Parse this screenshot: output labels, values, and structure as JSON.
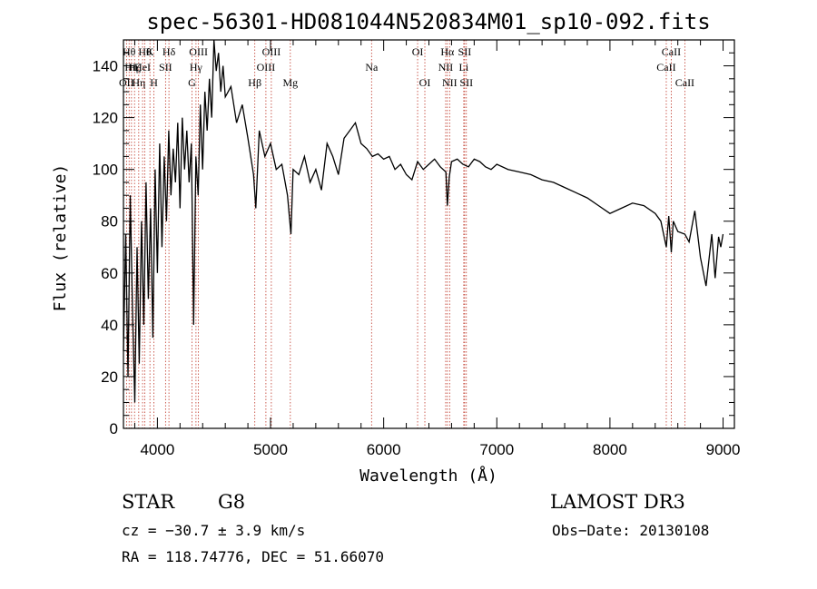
{
  "chart_data": {
    "type": "line",
    "title": "spec-56301-HD081044N520834M01_sp10-092.fits",
    "xlabel": "Wavelength (Å)",
    "ylabel": "Flux (relative)",
    "xlim": [
      3700,
      9100
    ],
    "ylim": [
      0,
      150
    ],
    "xticks": [
      {
        "value": 4000,
        "label": "4000"
      },
      {
        "value": 5000,
        "label": "5000"
      },
      {
        "value": 6000,
        "label": "6000"
      },
      {
        "value": 7000,
        "label": "7000"
      },
      {
        "value": 8000,
        "label": "8000"
      },
      {
        "value": 9000,
        "label": "9000"
      }
    ],
    "yticks": [
      {
        "value": 0,
        "label": "0"
      },
      {
        "value": 20,
        "label": "20"
      },
      {
        "value": 40,
        "label": "40"
      },
      {
        "value": 60,
        "label": "60"
      },
      {
        "value": 80,
        "label": "80"
      },
      {
        "value": 100,
        "label": "100"
      },
      {
        "value": 120,
        "label": "120"
      },
      {
        "value": 140,
        "label": "140"
      }
    ],
    "series": [
      {
        "name": "flux",
        "x": [
          3700,
          3720,
          3740,
          3760,
          3780,
          3800,
          3820,
          3840,
          3860,
          3880,
          3900,
          3920,
          3940,
          3960,
          3980,
          4000,
          4020,
          4040,
          4060,
          4080,
          4100,
          4120,
          4140,
          4160,
          4180,
          4200,
          4220,
          4240,
          4260,
          4280,
          4300,
          4320,
          4340,
          4360,
          4380,
          4400,
          4420,
          4440,
          4460,
          4480,
          4500,
          4520,
          4540,
          4560,
          4580,
          4600,
          4650,
          4700,
          4750,
          4800,
          4850,
          4870,
          4900,
          4950,
          5000,
          5050,
          5100,
          5150,
          5180,
          5200,
          5250,
          5300,
          5350,
          5400,
          5450,
          5500,
          5550,
          5600,
          5650,
          5700,
          5750,
          5800,
          5850,
          5900,
          5950,
          6000,
          6050,
          6100,
          6150,
          6200,
          6250,
          6300,
          6350,
          6400,
          6450,
          6500,
          6550,
          6563,
          6580,
          6600,
          6650,
          6700,
          6750,
          6800,
          6850,
          6900,
          6950,
          7000,
          7100,
          7200,
          7300,
          7400,
          7500,
          7600,
          7700,
          7800,
          7900,
          8000,
          8100,
          8200,
          8300,
          8400,
          8450,
          8498,
          8520,
          8542,
          8560,
          8600,
          8662,
          8700,
          8750,
          8800,
          8850,
          8900,
          8930,
          8960,
          8980,
          9000
        ],
        "y": [
          30,
          75,
          20,
          90,
          45,
          10,
          70,
          25,
          80,
          40,
          95,
          50,
          85,
          35,
          100,
          60,
          110,
          70,
          105,
          80,
          115,
          90,
          108,
          95,
          118,
          85,
          120,
          100,
          115,
          95,
          110,
          40,
          105,
          90,
          125,
          100,
          130,
          115,
          135,
          120,
          150,
          138,
          145,
          130,
          140,
          128,
          132,
          118,
          125,
          112,
          98,
          85,
          115,
          105,
          110,
          100,
          102,
          90,
          75,
          100,
          98,
          105,
          95,
          100,
          92,
          110,
          105,
          98,
          112,
          115,
          118,
          110,
          108,
          105,
          106,
          104,
          105,
          100,
          102,
          98,
          96,
          103,
          100,
          102,
          104,
          101,
          99,
          86,
          97,
          103,
          104,
          102,
          101,
          104,
          103,
          101,
          100,
          102,
          100,
          99,
          98,
          96,
          95,
          93,
          91,
          89,
          86,
          83,
          85,
          87,
          86,
          83,
          80,
          70,
          82,
          68,
          80,
          76,
          75,
          72,
          84,
          66,
          55,
          75,
          58,
          74,
          70,
          75
        ]
      }
    ],
    "lines": [
      {
        "wave": 3727,
        "label": "OII",
        "row": 2
      },
      {
        "wave": 3750,
        "label": "Hθ",
        "row": 0
      },
      {
        "wave": 3771,
        "label": "Hη",
        "row": 1
      },
      {
        "wave": 3798,
        "label": "Hζ",
        "row": 1
      },
      {
        "wave": 3835,
        "label": "Hη",
        "row": 2
      },
      {
        "wave": 3869,
        "label": "HeI",
        "row": 1
      },
      {
        "wave": 3889,
        "label": "Hθ",
        "row": 0
      },
      {
        "wave": 3934,
        "label": "K",
        "row": 0
      },
      {
        "wave": 3969,
        "label": "H",
        "row": 2
      },
      {
        "wave": 4072,
        "label": "SII",
        "row": 1
      },
      {
        "wave": 4102,
        "label": "Hδ",
        "row": 0
      },
      {
        "wave": 4305,
        "label": "G",
        "row": 2
      },
      {
        "wave": 4341,
        "label": "Hγ",
        "row": 1
      },
      {
        "wave": 4363,
        "label": "OIII",
        "row": 0
      },
      {
        "wave": 4861,
        "label": "Hβ",
        "row": 2
      },
      {
        "wave": 4959,
        "label": "OIII",
        "row": 1
      },
      {
        "wave": 5007,
        "label": "OIII",
        "row": 0
      },
      {
        "wave": 5175,
        "label": "Mg",
        "row": 2
      },
      {
        "wave": 5893,
        "label": "Na",
        "row": 1
      },
      {
        "wave": 6300,
        "label": "OI",
        "row": 0
      },
      {
        "wave": 6364,
        "label": "OI",
        "row": 2
      },
      {
        "wave": 6548,
        "label": "NII",
        "row": 1
      },
      {
        "wave": 6563,
        "label": "Hα",
        "row": 0
      },
      {
        "wave": 6583,
        "label": "NII",
        "row": 2
      },
      {
        "wave": 6708,
        "label": "Li",
        "row": 1
      },
      {
        "wave": 6716,
        "label": "SII",
        "row": 0
      },
      {
        "wave": 6731,
        "label": "SII",
        "row": 2
      },
      {
        "wave": 8498,
        "label": "CaII",
        "row": 1
      },
      {
        "wave": 8542,
        "label": "CaII",
        "row": 0
      },
      {
        "wave": 8662,
        "label": "CaII",
        "row": 2
      }
    ]
  },
  "footer": {
    "object_class": "STAR",
    "subclass": "G8",
    "survey": "LAMOST DR3",
    "redshift": "cz = −30.7 ± 3.9 km/s",
    "obs_date": "Obs−Date: 20130108",
    "coords": "RA = 118.74776, DEC =  51.66070"
  },
  "colors": {
    "spectrum": "#000000",
    "line_markers": "#c0392b",
    "axes": "#000000"
  }
}
